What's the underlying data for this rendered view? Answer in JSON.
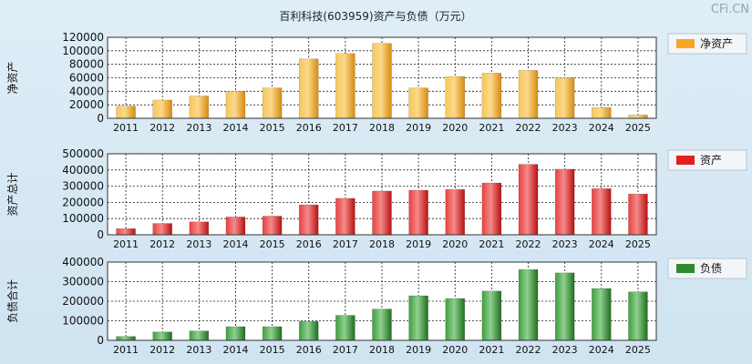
{
  "title": "百利科技(603959)资产与负债（万元）",
  "watermark": "CFi.CN",
  "colors": {
    "net_assets": "#f5a623",
    "assets": "#e02020",
    "liabilities": "#2e8b2e"
  },
  "chart_data": [
    {
      "type": "bar",
      "title": "百利科技(603959)资产与负债（万元）",
      "ylabel": "净资产",
      "legend": "净资产",
      "legend_position": "right",
      "categories": [
        "2011",
        "2012",
        "2013",
        "2014",
        "2015",
        "2016",
        "2017",
        "2018",
        "2019",
        "2020",
        "2021",
        "2022",
        "2023",
        "2024",
        "2025"
      ],
      "values": [
        18000,
        27000,
        33000,
        40000,
        45000,
        88000,
        96000,
        111000,
        45000,
        62000,
        67000,
        71000,
        60000,
        16000,
        5000
      ],
      "yticks": [
        0,
        20000,
        40000,
        60000,
        80000,
        100000,
        120000
      ],
      "ylim": [
        0,
        120000
      ]
    },
    {
      "type": "bar",
      "ylabel": "资产总计",
      "legend": "资产",
      "legend_position": "right",
      "categories": [
        "2011",
        "2012",
        "2013",
        "2014",
        "2015",
        "2016",
        "2017",
        "2018",
        "2019",
        "2020",
        "2021",
        "2022",
        "2023",
        "2024",
        "2025"
      ],
      "values": [
        38000,
        70000,
        80000,
        110000,
        115000,
        185000,
        225000,
        270000,
        275000,
        280000,
        320000,
        435000,
        405000,
        285000,
        252000
      ],
      "yticks": [
        0,
        100000,
        200000,
        300000,
        400000,
        500000
      ],
      "ylim": [
        0,
        500000
      ]
    },
    {
      "type": "bar",
      "ylabel": "负债合计",
      "legend": "负债",
      "legend_position": "right",
      "categories": [
        "2011",
        "2012",
        "2013",
        "2014",
        "2015",
        "2016",
        "2017",
        "2018",
        "2019",
        "2020",
        "2021",
        "2022",
        "2023",
        "2024",
        "2025"
      ],
      "values": [
        20000,
        43000,
        48000,
        70000,
        70000,
        97000,
        128000,
        160000,
        228000,
        214000,
        252000,
        362000,
        345000,
        265000,
        248000
      ],
      "yticks": [
        0,
        100000,
        200000,
        300000,
        400000
      ],
      "ylim": [
        0,
        400000
      ]
    }
  ]
}
